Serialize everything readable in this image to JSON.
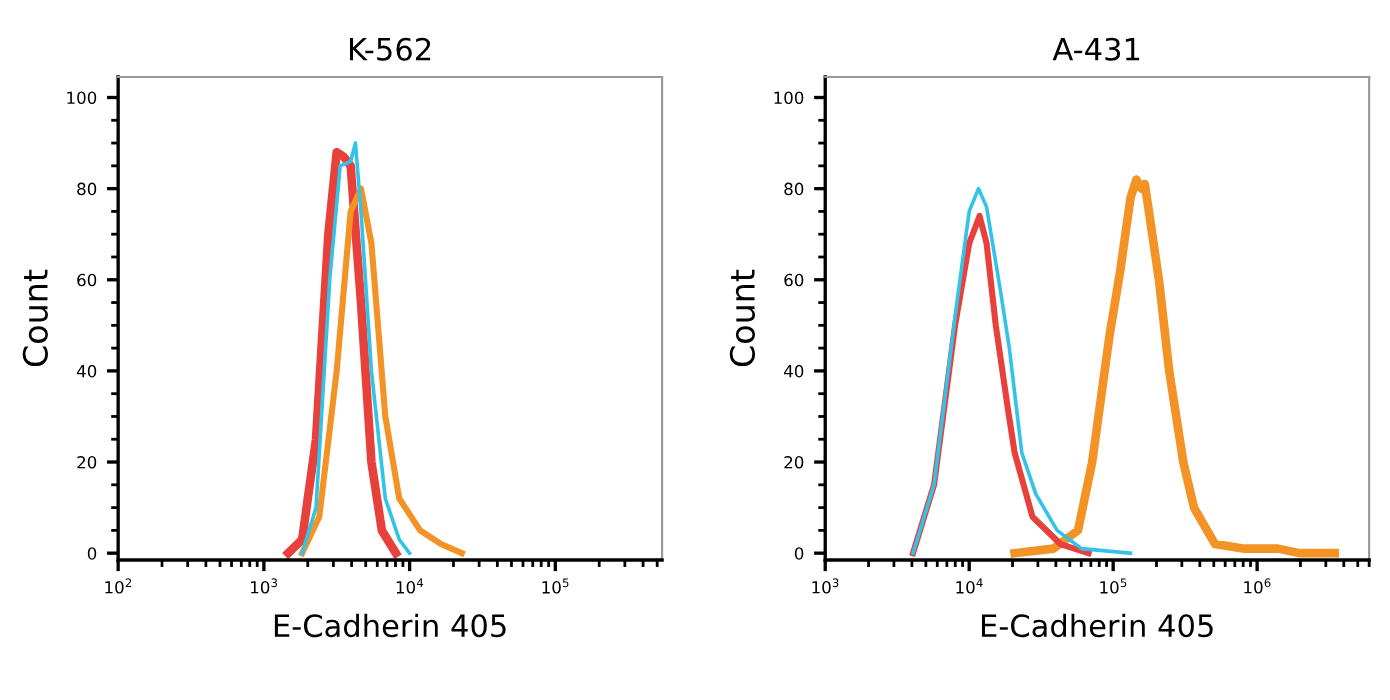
{
  "chart_data": [
    {
      "type": "line",
      "title": "K-562",
      "xlabel": "E-Cadherin 405",
      "ylabel": "Count",
      "log": "x",
      "grid": false,
      "legend": false,
      "marker": "none",
      "line_style": "solid",
      "xlim": [
        100,
        540000
      ],
      "xticks": [
        {
          "value": 100,
          "label": "10$^{2}$"
        },
        {
          "value": 1000,
          "label": "10$^{3}$"
        },
        {
          "value": 10000,
          "label": "10$^{4}$"
        },
        {
          "value": 100000,
          "label": "10$^{5}$"
        }
      ],
      "ylim": [
        -1.5,
        104.5
      ],
      "yticks": [
        0,
        20,
        40,
        60,
        80,
        100
      ],
      "series": [
        {
          "color": "#e8413c",
          "x": [
            1470,
            1830,
            2280,
            2770,
            3160,
            3530,
            3940,
            4640,
            5470,
            6450,
            8040
          ],
          "values": [
            0,
            3,
            25,
            70,
            88,
            87,
            85,
            55,
            20,
            5,
            0
          ]
        },
        {
          "color": "#f39325",
          "x": [
            1830,
            2400,
            3160,
            3940,
            4640,
            5470,
            6810,
            8490,
            11800,
            16400,
            22800
          ],
          "values": [
            0,
            8,
            40,
            75,
            80,
            68,
            30,
            12,
            5,
            2,
            0
          ]
        },
        {
          "color": "#33c3e8",
          "x": [
            1830,
            2280,
            2830,
            3340,
            3940,
            4250,
            4640,
            5470,
            6810,
            8490,
            10000
          ],
          "values": [
            0,
            10,
            60,
            85,
            86,
            90,
            75,
            40,
            12,
            3,
            0
          ]
        }
      ]
    },
    {
      "type": "line",
      "title": "A-431",
      "xlabel": "E-Cadherin 405",
      "ylabel": "Count",
      "log": "x",
      "grid": false,
      "legend": false,
      "marker": "none",
      "line_style": "solid",
      "xlim": [
        1000,
        6000000
      ],
      "xticks": [
        {
          "value": 1000,
          "label": "10$^{3}$"
        },
        {
          "value": 10000,
          "label": "10$^{4}$"
        },
        {
          "value": 100000,
          "label": "10$^{5}$"
        },
        {
          "value": 1000000,
          "label": "10$^{6}$"
        }
      ],
      "ylim": [
        -1.5,
        104.5
      ],
      "yticks": [
        0,
        20,
        40,
        60,
        80,
        100
      ],
      "series": [
        {
          "color": "#f39325",
          "x": [
            20700,
            38500,
            57000,
            71500,
            94600,
            112000,
            132000,
            145000,
            157000,
            166000,
            208000,
            245000,
            307000,
            364000,
            510000,
            798000,
            1400000,
            1960000,
            3460000
          ],
          "values": [
            0,
            1,
            5,
            20,
            48,
            62,
            78,
            82,
            80,
            81,
            60,
            40,
            20,
            10,
            2,
            1,
            1,
            0,
            0
          ]
        },
        {
          "color": "#e8413c",
          "x": [
            4070,
            5700,
            7980,
            10000,
            11800,
            13200,
            15300,
            18500,
            20700,
            27500,
            43000,
            67400
          ],
          "values": [
            0,
            15,
            50,
            68,
            74,
            68,
            50,
            32,
            22,
            8,
            2,
            0
          ]
        },
        {
          "color": "#33c3e8",
          "x": [
            4070,
            5700,
            7980,
            10000,
            11600,
            13200,
            16600,
            19000,
            23200,
            29000,
            40800,
            60300,
            132000
          ],
          "values": [
            0,
            15,
            52,
            75,
            80,
            76,
            57,
            45,
            22,
            13,
            5,
            1,
            0
          ]
        }
      ]
    }
  ]
}
